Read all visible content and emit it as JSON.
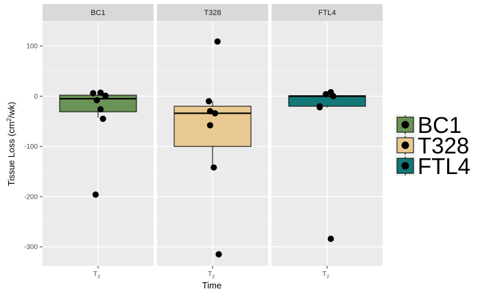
{
  "chart_data": {
    "type": "boxplot",
    "ylabel": {
      "main": "Tissue Loss (cm",
      "sup": "2",
      "tail": "/wk)"
    },
    "xlabel": "Time",
    "x_tick": {
      "main": "T",
      "sub": "2"
    },
    "ylim": [
      -338,
      148
    ],
    "y_ticks": [
      100,
      0,
      -100,
      -200,
      -300
    ],
    "y_tick_labels": [
      "100",
      "0",
      "-100",
      "-200",
      "-300"
    ],
    "legend_position": "right",
    "grid": true,
    "panels": [
      {
        "name": "BC1",
        "color": "#6a9455",
        "box": {
          "q1": -31,
          "median": -5,
          "q3": 2,
          "whisker_low": -43,
          "whisker_high": 7
        },
        "points": [
          {
            "x": 0.96,
            "y": 6
          },
          {
            "x": 1.02,
            "y": 7
          },
          {
            "x": 1.06,
            "y": 1
          },
          {
            "x": 0.99,
            "y": -8
          },
          {
            "x": 1.02,
            "y": -26
          },
          {
            "x": 1.04,
            "y": -45
          },
          {
            "x": 0.98,
            "y": -196
          }
        ]
      },
      {
        "name": "T328",
        "color": "#e8c990",
        "box": {
          "q1": -100,
          "median": -34,
          "q3": -20,
          "whisker_low": -143,
          "whisker_high": -10
        },
        "points": [
          {
            "x": 1.04,
            "y": 109
          },
          {
            "x": 0.97,
            "y": -10
          },
          {
            "x": 0.98,
            "y": -30
          },
          {
            "x": 1.02,
            "y": -34
          },
          {
            "x": 0.98,
            "y": -58
          },
          {
            "x": 1.01,
            "y": -142
          },
          {
            "x": 1.05,
            "y": -315
          }
        ]
      },
      {
        "name": "FTL4",
        "color": "#137978",
        "box": {
          "q1": -20,
          "median": 0,
          "q3": 1,
          "whisker_low": -23,
          "whisker_high": 8
        },
        "points": [
          {
            "x": 1.03,
            "y": 8
          },
          {
            "x": 0.99,
            "y": 4
          },
          {
            "x": 1.05,
            "y": 0
          },
          {
            "x": 0.94,
            "y": -20
          },
          {
            "x": 0.94,
            "y": -22
          },
          {
            "x": 1.03,
            "y": -284
          }
        ]
      }
    ]
  }
}
